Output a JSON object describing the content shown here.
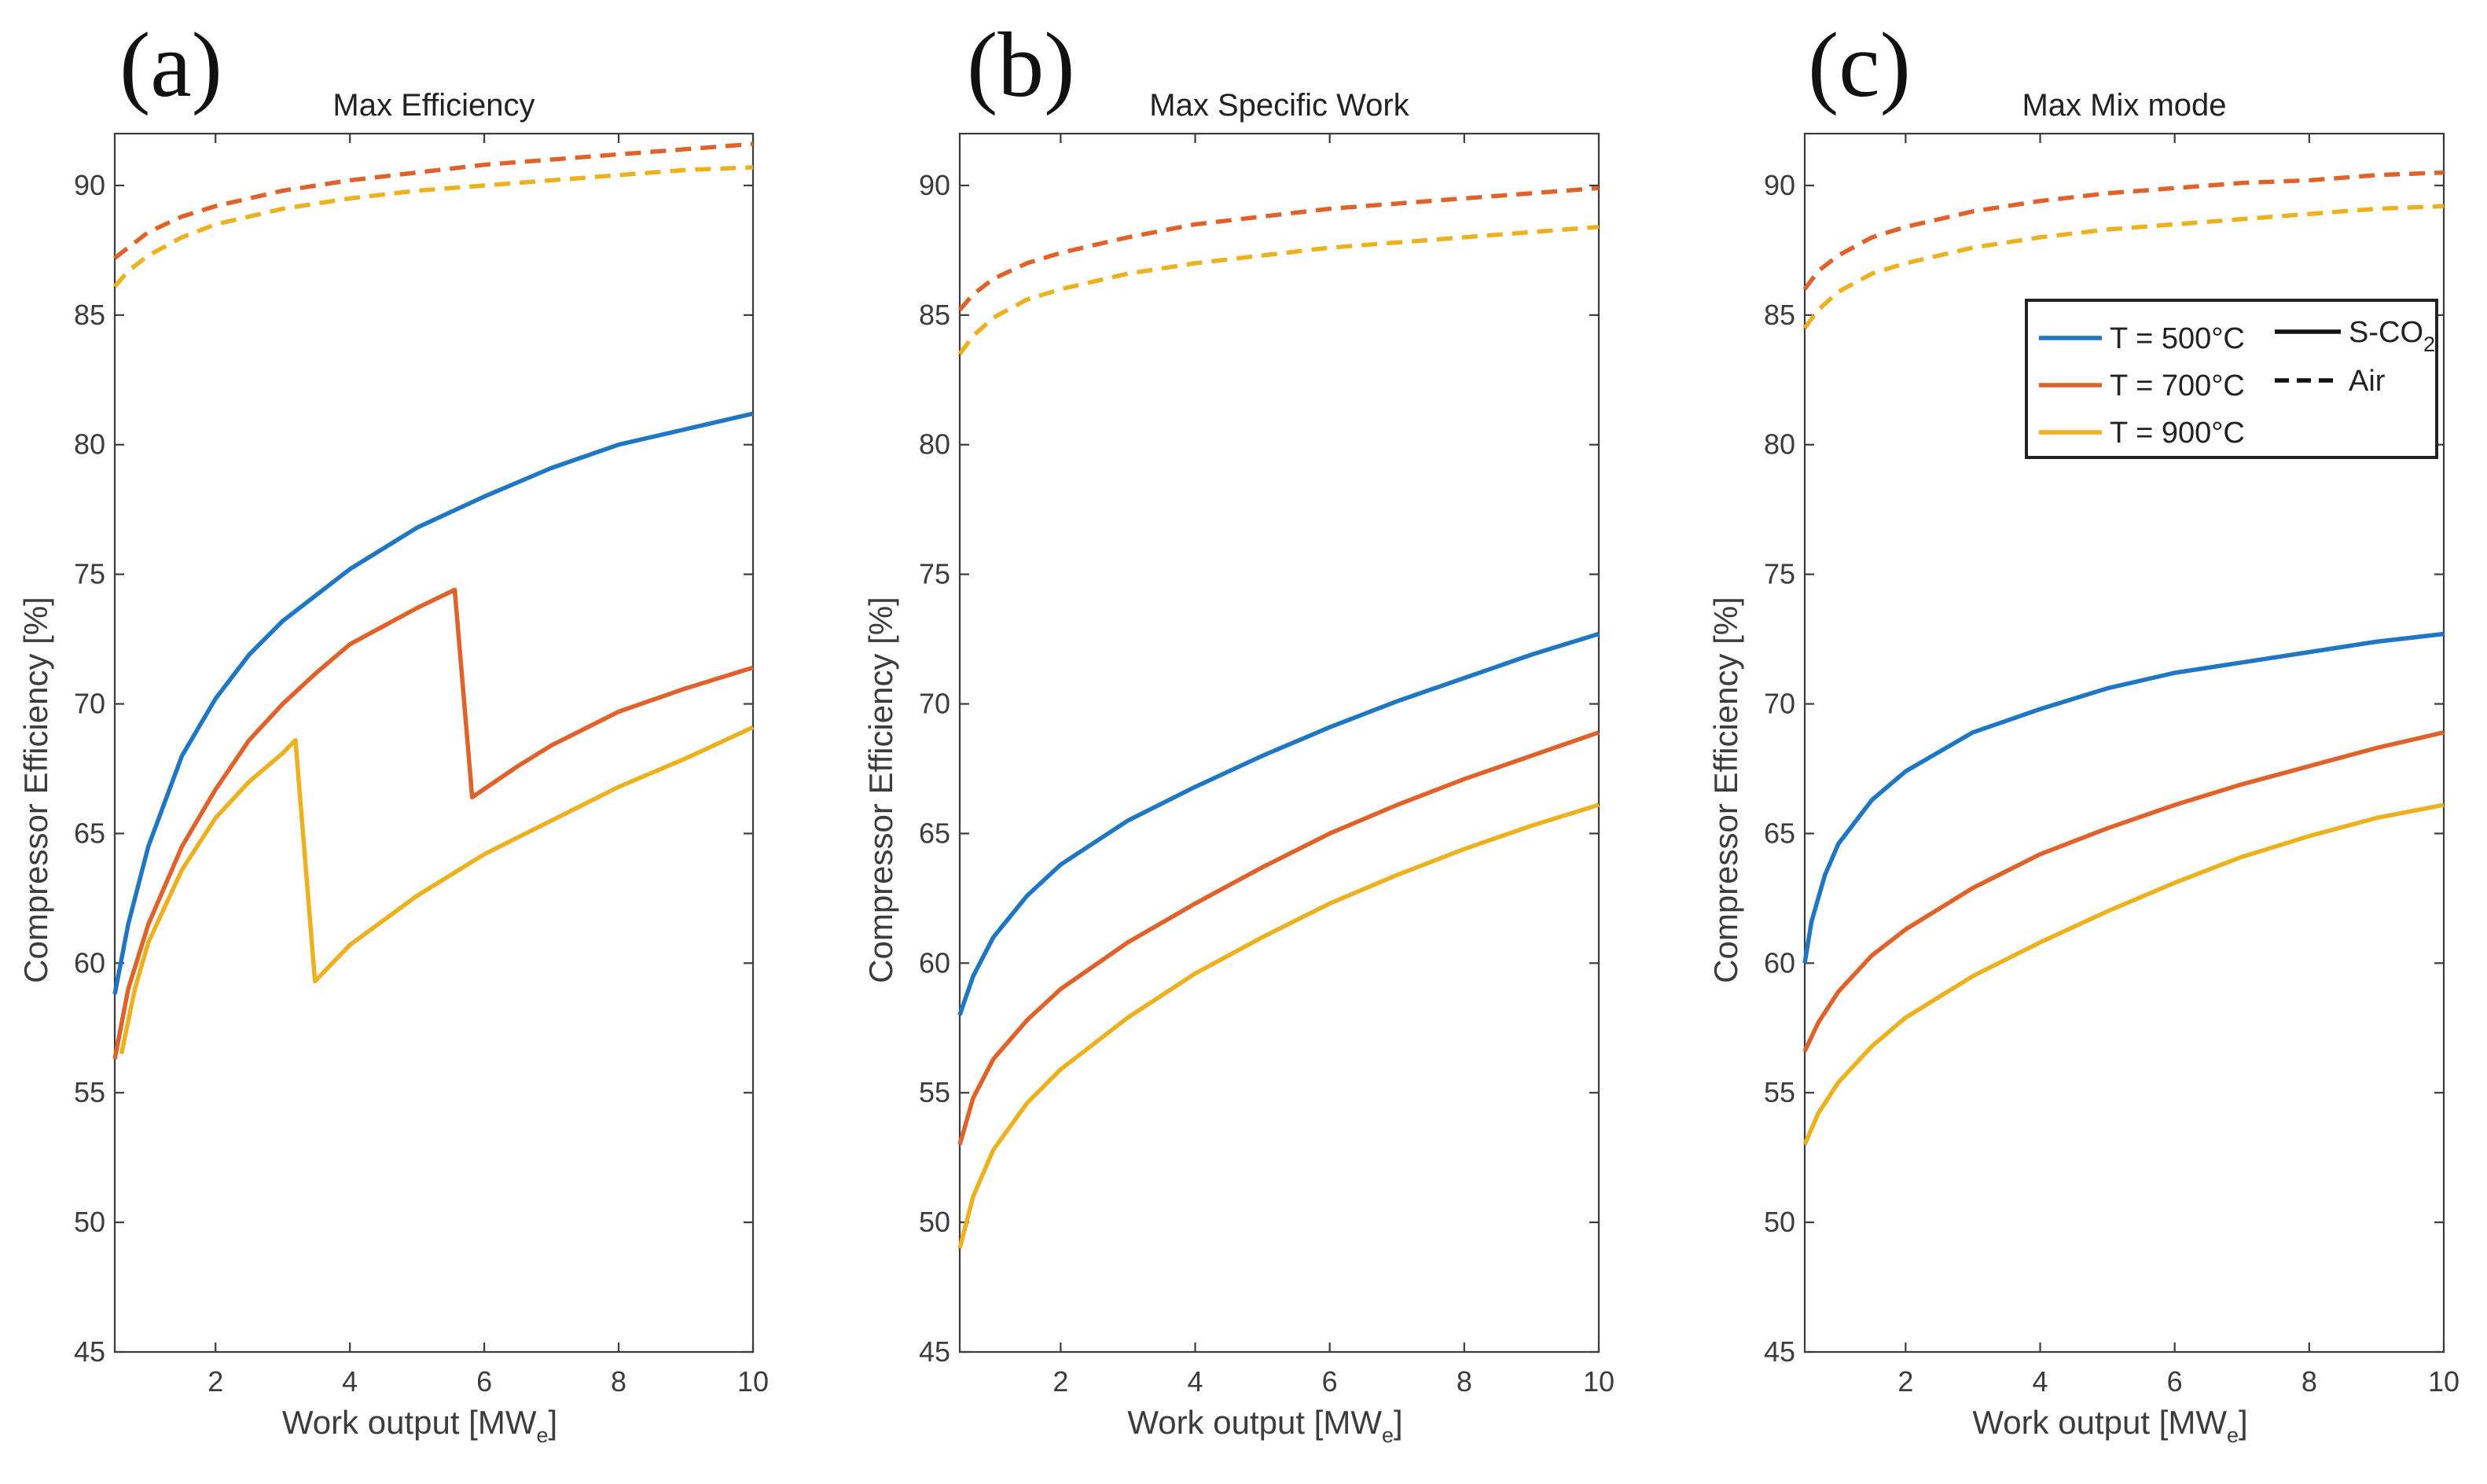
{
  "chart_data": [
    {
      "type": "line",
      "panel_label": "(a)",
      "title": "Max Efficiency",
      "xlabel": "Work output [MW",
      "xlabel_sub": "e",
      "xlabel_end": "]",
      "ylabel": "Compressor Efficiency [%]",
      "xlim": [
        0.5,
        10
      ],
      "ylim": [
        45,
        92
      ],
      "xticks": [
        2,
        4,
        6,
        8,
        10
      ],
      "yticks": [
        45,
        50,
        55,
        60,
        65,
        70,
        75,
        80,
        85,
        90
      ],
      "series": [
        {
          "name": "T = 500°C S-CO2",
          "color": "#1f77c4",
          "style": "solid",
          "x": [
            0.5,
            0.7,
            1.0,
            1.5,
            2.0,
            2.5,
            3.0,
            4.0,
            5.0,
            6.0,
            7.0,
            8.0,
            9.0,
            10.0
          ],
          "y": [
            58.8,
            61.5,
            64.5,
            68.0,
            70.2,
            71.9,
            73.2,
            75.2,
            76.8,
            78.0,
            79.1,
            80.0,
            80.6,
            81.2
          ]
        },
        {
          "name": "T = 700°C S-CO2",
          "color": "#e0622a",
          "style": "solid",
          "x": [
            0.5,
            0.7,
            1.0,
            1.5,
            2.0,
            2.5,
            3.0,
            3.5,
            4.0,
            4.5,
            5.0,
            5.56,
            5.82,
            6.5,
            7.0,
            8.0,
            9.0,
            10.0
          ],
          "y": [
            56.3,
            59.0,
            61.5,
            64.5,
            66.7,
            68.6,
            70.0,
            71.2,
            72.3,
            73.0,
            73.7,
            74.4,
            66.4,
            67.6,
            68.4,
            69.7,
            70.6,
            71.4
          ]
        },
        {
          "name": "T = 900°C S-CO2",
          "color": "#edb120",
          "style": "solid",
          "x": [
            0.6,
            0.8,
            1.0,
            1.5,
            2.0,
            2.5,
            3.0,
            3.19,
            3.48,
            4.0,
            5.0,
            6.0,
            7.0,
            8.0,
            9.0,
            10.0
          ],
          "y": [
            56.5,
            59.0,
            60.8,
            63.6,
            65.6,
            67.0,
            68.1,
            68.6,
            59.3,
            60.7,
            62.6,
            64.2,
            65.5,
            66.8,
            67.9,
            69.1
          ]
        },
        {
          "name": "T = 700°C Air",
          "color": "#e0622a",
          "style": "dashed",
          "x": [
            0.5,
            0.7,
            1.0,
            1.5,
            2.0,
            3.0,
            4.0,
            5.0,
            6.0,
            7.0,
            8.0,
            9.0,
            10.0
          ],
          "y": [
            87.2,
            87.6,
            88.2,
            88.8,
            89.2,
            89.8,
            90.2,
            90.5,
            90.8,
            91.0,
            91.2,
            91.4,
            91.6
          ]
        },
        {
          "name": "T = 900°C Air",
          "color": "#edb120",
          "style": "dashed",
          "x": [
            0.5,
            0.7,
            1.0,
            1.5,
            2.0,
            3.0,
            4.0,
            5.0,
            6.0,
            7.0,
            8.0,
            9.0,
            10.0
          ],
          "y": [
            86.1,
            86.7,
            87.3,
            88.0,
            88.5,
            89.1,
            89.5,
            89.8,
            90.0,
            90.2,
            90.4,
            90.6,
            90.7
          ]
        }
      ]
    },
    {
      "type": "line",
      "panel_label": "(b)",
      "title": "Max Specific Work",
      "xlabel": "Work output [MW",
      "xlabel_sub": "e",
      "xlabel_end": "]",
      "ylabel": "Compressor Efficiency [%]",
      "xlim": [
        0.5,
        10
      ],
      "ylim": [
        45,
        92
      ],
      "xticks": [
        2,
        4,
        6,
        8,
        10
      ],
      "yticks": [
        45,
        50,
        55,
        60,
        65,
        70,
        75,
        80,
        85,
        90
      ],
      "series": [
        {
          "name": "T = 500°C S-CO2",
          "color": "#1f77c4",
          "style": "solid",
          "x": [
            0.5,
            0.7,
            1.0,
            1.5,
            2.0,
            3.0,
            4.0,
            5.0,
            6.0,
            7.0,
            8.0,
            9.0,
            10.0
          ],
          "y": [
            58.0,
            59.5,
            61.0,
            62.6,
            63.8,
            65.5,
            66.8,
            68.0,
            69.1,
            70.1,
            71.0,
            71.9,
            72.7
          ]
        },
        {
          "name": "T = 700°C S-CO2",
          "color": "#e0622a",
          "style": "solid",
          "x": [
            0.5,
            0.7,
            1.0,
            1.5,
            2.0,
            3.0,
            4.0,
            5.0,
            6.0,
            7.0,
            8.0,
            9.0,
            10.0
          ],
          "y": [
            53.0,
            54.8,
            56.3,
            57.8,
            59.0,
            60.8,
            62.3,
            63.7,
            65.0,
            66.1,
            67.1,
            68.0,
            68.9
          ]
        },
        {
          "name": "T = 900°C S-CO2",
          "color": "#edb120",
          "style": "solid",
          "x": [
            0.5,
            0.7,
            1.0,
            1.5,
            2.0,
            3.0,
            4.0,
            5.0,
            6.0,
            7.0,
            8.0,
            9.0,
            10.0
          ],
          "y": [
            49.0,
            51.0,
            52.8,
            54.6,
            55.9,
            57.9,
            59.6,
            61.0,
            62.3,
            63.4,
            64.4,
            65.3,
            66.1
          ]
        },
        {
          "name": "T = 700°C Air",
          "color": "#e0622a",
          "style": "dashed",
          "x": [
            0.5,
            0.7,
            1.0,
            1.5,
            2.0,
            3.0,
            4.0,
            5.0,
            6.0,
            7.0,
            8.0,
            9.0,
            10.0
          ],
          "y": [
            85.2,
            85.8,
            86.4,
            87.0,
            87.4,
            88.0,
            88.5,
            88.8,
            89.1,
            89.3,
            89.5,
            89.7,
            89.9
          ]
        },
        {
          "name": "T = 900°C Air",
          "color": "#edb120",
          "style": "dashed",
          "x": [
            0.5,
            0.7,
            1.0,
            1.5,
            2.0,
            3.0,
            4.0,
            5.0,
            6.0,
            7.0,
            8.0,
            9.0,
            10.0
          ],
          "y": [
            83.5,
            84.2,
            84.9,
            85.6,
            86.0,
            86.6,
            87.0,
            87.3,
            87.6,
            87.8,
            88.0,
            88.2,
            88.4
          ]
        }
      ]
    },
    {
      "type": "line",
      "panel_label": "(c)",
      "title": "Max Mix mode",
      "xlabel": "Work output [MW",
      "xlabel_sub": "e",
      "xlabel_end": "]",
      "ylabel": "Compressor Efficiency [%]",
      "xlim": [
        0.5,
        10
      ],
      "ylim": [
        45,
        92
      ],
      "xticks": [
        2,
        4,
        6,
        8,
        10
      ],
      "yticks": [
        45,
        50,
        55,
        60,
        65,
        70,
        75,
        80,
        85,
        90
      ],
      "legend": {
        "position": "top-right",
        "temperature_entries": [
          {
            "label": "T = 500°C",
            "color": "#1f77c4"
          },
          {
            "label": "T = 700°C",
            "color": "#e0622a"
          },
          {
            "label": "T = 900°C",
            "color": "#edb120"
          }
        ],
        "style_entries": [
          {
            "label": "S-CO",
            "sub": "2",
            "style": "solid"
          },
          {
            "label": "Air",
            "sub": "",
            "style": "dashed"
          }
        ]
      },
      "series": [
        {
          "name": "T = 500°C S-CO2",
          "color": "#1f77c4",
          "style": "solid",
          "x": [
            0.5,
            0.6,
            0.8,
            1.0,
            1.5,
            2.0,
            3.0,
            4.0,
            5.0,
            6.0,
            7.0,
            8.0,
            9.0,
            10.0
          ],
          "y": [
            60.0,
            61.6,
            63.4,
            64.6,
            66.3,
            67.4,
            68.9,
            69.8,
            70.6,
            71.2,
            71.6,
            72.0,
            72.4,
            72.7
          ]
        },
        {
          "name": "T = 700°C S-CO2",
          "color": "#e0622a",
          "style": "solid",
          "x": [
            0.5,
            0.7,
            1.0,
            1.5,
            2.0,
            3.0,
            4.0,
            5.0,
            6.0,
            7.0,
            8.0,
            9.0,
            10.0
          ],
          "y": [
            56.6,
            57.7,
            58.9,
            60.3,
            61.3,
            62.9,
            64.2,
            65.2,
            66.1,
            66.9,
            67.6,
            68.3,
            68.9
          ]
        },
        {
          "name": "T = 900°C S-CO2",
          "color": "#edb120",
          "style": "solid",
          "x": [
            0.5,
            0.7,
            1.0,
            1.5,
            2.0,
            3.0,
            4.0,
            5.0,
            6.0,
            7.0,
            8.0,
            9.0,
            10.0
          ],
          "y": [
            53.0,
            54.2,
            55.4,
            56.8,
            57.9,
            59.5,
            60.8,
            62.0,
            63.1,
            64.1,
            64.9,
            65.6,
            66.1
          ]
        },
        {
          "name": "T = 700°C Air",
          "color": "#e0622a",
          "style": "dashed",
          "x": [
            0.5,
            0.7,
            1.0,
            1.5,
            2.0,
            3.0,
            4.0,
            5.0,
            6.0,
            7.0,
            8.0,
            9.0,
            10.0
          ],
          "y": [
            86.0,
            86.7,
            87.3,
            88.0,
            88.4,
            89.0,
            89.4,
            89.7,
            89.9,
            90.1,
            90.2,
            90.4,
            90.5
          ]
        },
        {
          "name": "T = 900°C Air",
          "color": "#edb120",
          "style": "dashed",
          "x": [
            0.5,
            0.7,
            1.0,
            1.5,
            2.0,
            3.0,
            4.0,
            5.0,
            6.0,
            7.0,
            8.0,
            9.0,
            10.0
          ],
          "y": [
            84.5,
            85.2,
            85.9,
            86.6,
            87.0,
            87.6,
            88.0,
            88.3,
            88.5,
            88.7,
            88.9,
            89.1,
            89.2
          ]
        }
      ]
    }
  ]
}
